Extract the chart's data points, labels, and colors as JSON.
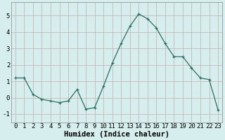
{
  "x": [
    0,
    1,
    2,
    3,
    4,
    5,
    6,
    7,
    8,
    9,
    10,
    11,
    12,
    13,
    14,
    15,
    16,
    17,
    18,
    19,
    20,
    21,
    22,
    23
  ],
  "y": [
    1.2,
    1.2,
    0.2,
    -0.1,
    -0.2,
    -0.3,
    -0.2,
    0.5,
    -0.7,
    -0.6,
    0.7,
    2.1,
    3.3,
    4.35,
    5.1,
    4.8,
    4.25,
    3.3,
    2.5,
    2.5,
    1.8,
    1.2,
    1.1,
    -0.75
  ],
  "xlabel": "Humidex (Indice chaleur)",
  "ylim": [
    -1.5,
    5.8
  ],
  "xlim": [
    -0.5,
    23.5
  ],
  "line_color": "#2d6e60",
  "marker": "+",
  "bg_color": "#d6eeed",
  "grid_major_color": "#c4b8b8",
  "grid_minor_color": "#c4b8b8",
  "xlabel_fontsize": 7.5,
  "tick_fontsize": 6.5,
  "yticks": [
    -1,
    0,
    1,
    2,
    3,
    4,
    5
  ]
}
